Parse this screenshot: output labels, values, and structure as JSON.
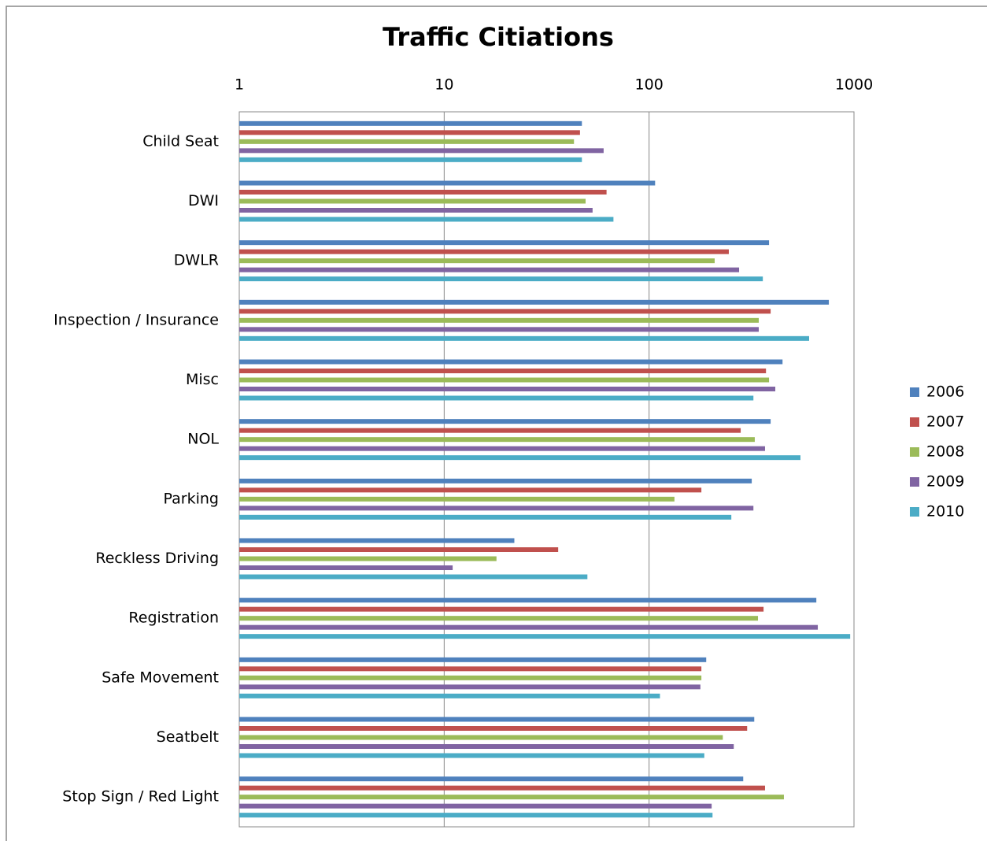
{
  "chart_data": {
    "type": "bar",
    "orientation": "horizontal",
    "title": "Traffic Citiations",
    "categories": [
      "Child Seat",
      "DWI",
      "DWLR",
      "Inspection / Insurance",
      "Misc",
      "NOL",
      "Parking",
      "Reckless Driving",
      "Registration",
      "Safe Movement",
      "Seatbelt",
      "Stop Sign / Red Light"
    ],
    "series": [
      {
        "name": "2006",
        "color": "#4F81BD",
        "values": [
          47,
          107,
          385,
          754,
          448,
          392,
          317,
          22,
          655,
          190,
          326,
          288
        ]
      },
      {
        "name": "2007",
        "color": "#C0504D",
        "values": [
          46,
          62,
          245,
          392,
          372,
          280,
          180,
          36,
          362,
          180,
          301,
          368
        ]
      },
      {
        "name": "2008",
        "color": "#9BBB59",
        "values": [
          43,
          49,
          209,
          343,
          385,
          328,
          133,
          18,
          340,
          180,
          229,
          455
        ]
      },
      {
        "name": "2009",
        "color": "#8064A2",
        "values": [
          60,
          53,
          275,
          343,
          413,
          368,
          323,
          11,
          666,
          178,
          259,
          202
        ]
      },
      {
        "name": "2010",
        "color": "#4BACC6",
        "values": [
          47,
          67,
          359,
          604,
          323,
          548,
          252,
          50,
          958,
          113,
          186,
          204
        ]
      }
    ],
    "xscale": "log",
    "xlim": [
      1,
      1000
    ],
    "xticks": [
      1,
      10,
      100,
      1000
    ],
    "grid": true,
    "legend": "right"
  }
}
